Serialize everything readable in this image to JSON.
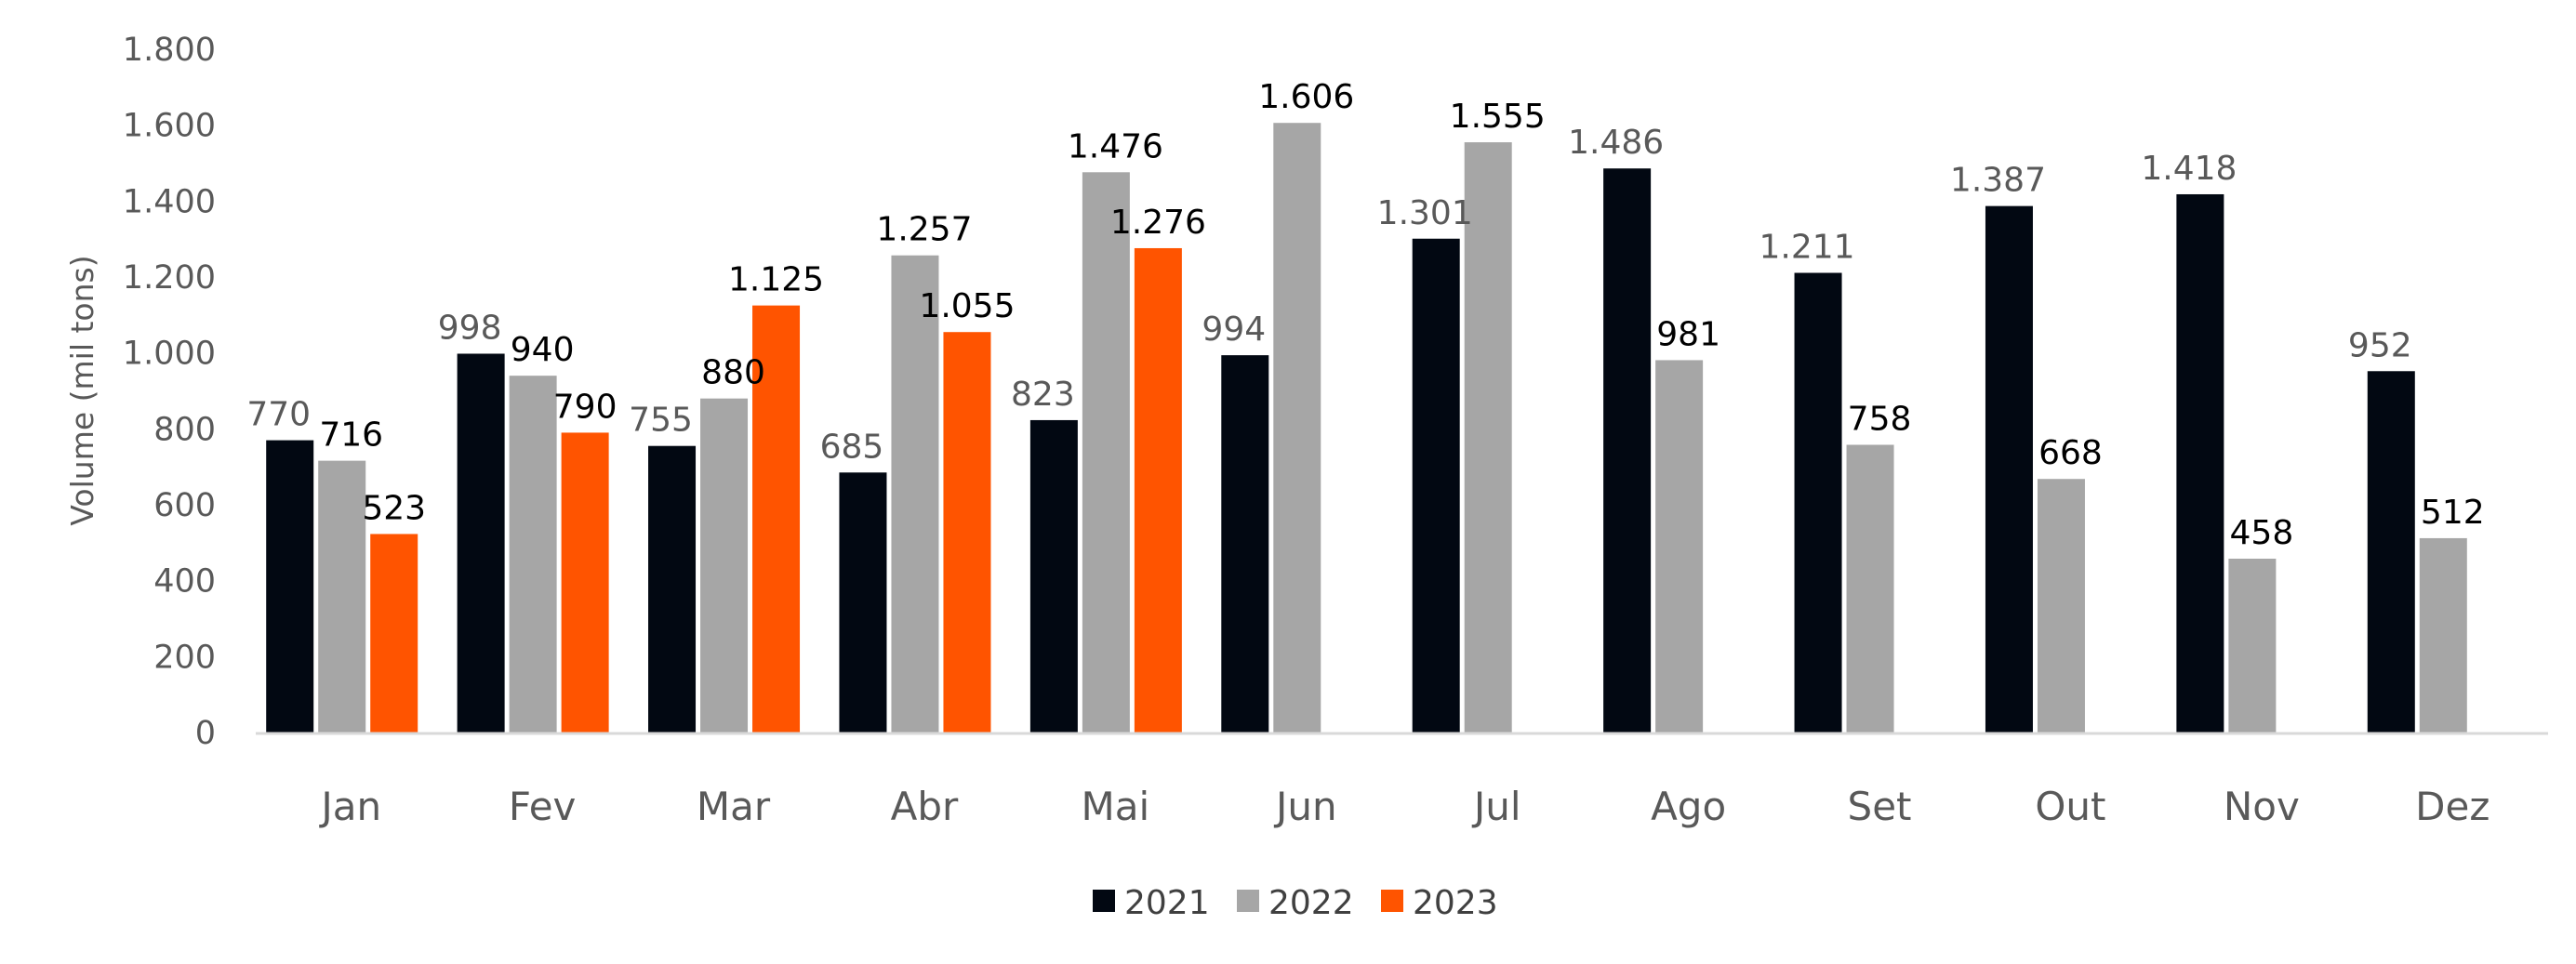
{
  "chart_data": {
    "type": "bar",
    "title": "",
    "xlabel": "",
    "ylabel": "Volume (mil tons)",
    "ylim": [
      0,
      1800
    ],
    "yticks": [
      0,
      200,
      400,
      600,
      800,
      1000,
      1200,
      1400,
      1600,
      1800
    ],
    "ytick_labels": [
      "0",
      "200",
      "400",
      "600",
      "800",
      "1.000",
      "1.200",
      "1.400",
      "1.600",
      "1.800"
    ],
    "grid": false,
    "legend_position": "bottom",
    "categories": [
      "Jan",
      "Fev",
      "Mar",
      "Abr",
      "Mai",
      "Jun",
      "Jul",
      "Ago",
      "Set",
      "Out",
      "Nov",
      "Dez"
    ],
    "series": [
      {
        "name": "2021",
        "color": "#020812",
        "label_color": "#595959",
        "values": [
          770,
          998,
          755,
          685,
          823,
          994,
          1301,
          1486,
          1211,
          1387,
          1418,
          952
        ],
        "labels": [
          "770",
          "998",
          "755",
          "685",
          "823",
          "994",
          "1.301",
          "1.486",
          "1.211",
          "1.387",
          "1.418",
          "952"
        ]
      },
      {
        "name": "2022",
        "color": "#A6A6A6",
        "label_color": "#000000",
        "values": [
          716,
          940,
          880,
          1257,
          1476,
          1606,
          1555,
          981,
          758,
          668,
          458,
          512
        ],
        "labels": [
          "716",
          "940",
          "880",
          "1.257",
          "1.476",
          "1.606",
          "1.555",
          "981",
          "758",
          "668",
          "458",
          "512"
        ]
      },
      {
        "name": "2023",
        "color": "#FF5400",
        "label_color": "#000000",
        "values": [
          523,
          790,
          1125,
          1055,
          1276,
          null,
          null,
          null,
          null,
          null,
          null,
          null
        ],
        "labels": [
          "523",
          "790",
          "1.125",
          "1.055",
          "1.276",
          null,
          null,
          null,
          null,
          null,
          null,
          null
        ]
      }
    ]
  }
}
